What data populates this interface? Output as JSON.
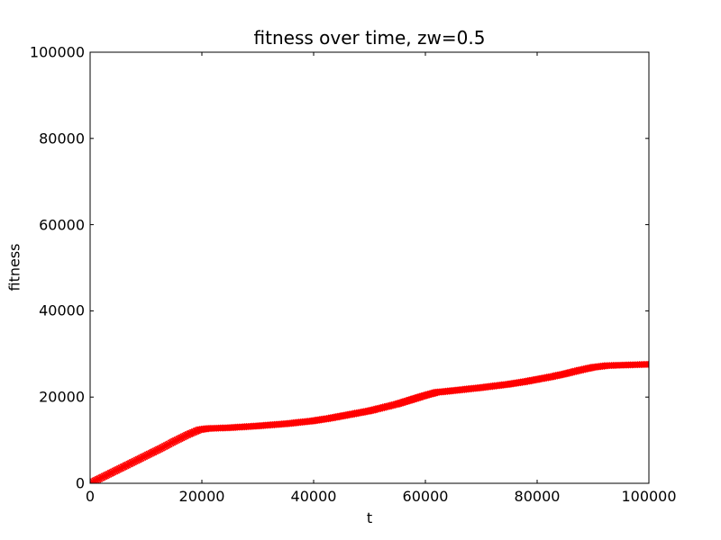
{
  "figure": {
    "background_color": "#ffffff",
    "axis_color": "#000000",
    "text_color": "#000000"
  },
  "chart_data": {
    "type": "line",
    "title": "fitness over time, zw=0.5",
    "xlabel": "t",
    "ylabel": "fitness",
    "xlim": [
      0,
      100000
    ],
    "ylim": [
      0,
      100000
    ],
    "x_ticks": [
      0,
      20000,
      40000,
      60000,
      80000,
      100000
    ],
    "y_ticks": [
      0,
      20000,
      40000,
      60000,
      80000,
      100000
    ],
    "grid": false,
    "legend": null,
    "marker": "x",
    "marker_color": "#ff0000",
    "series": [
      {
        "name": "fitness",
        "color": "#ff0000",
        "x": [
          0,
          2500,
          5000,
          7500,
          10000,
          12500,
          15000,
          17500,
          19500,
          21000,
          25000,
          30000,
          35000,
          40000,
          42500,
          45000,
          47500,
          50000,
          52500,
          55000,
          57500,
          60000,
          62000,
          65000,
          70000,
          72500,
          75000,
          77500,
          80000,
          82500,
          85000,
          87500,
          90000,
          92500,
          95000,
          100000
        ],
        "y": [
          0,
          1600,
          3200,
          4800,
          6400,
          8000,
          9700,
          11300,
          12400,
          12700,
          12900,
          13300,
          13800,
          14500,
          15000,
          15600,
          16200,
          16800,
          17600,
          18400,
          19400,
          20400,
          21100,
          21500,
          22200,
          22600,
          23000,
          23500,
          24100,
          24700,
          25400,
          26200,
          26900,
          27300,
          27400,
          27600
        ]
      }
    ]
  }
}
